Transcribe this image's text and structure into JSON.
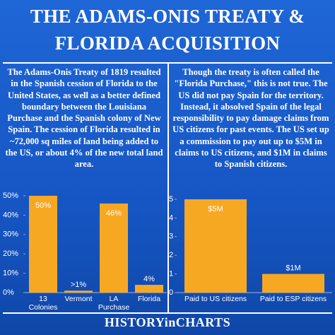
{
  "title": "THE ADAMS-ONIS TREATY & FLORIDA ACQUISITION",
  "left_text": "The Adams-Onis Treaty of 1819 resulted in the Spanish cession of Florida to the United States, as well as a better defined boundary between the Louisiana Purchase and the Spanish colony of New Spain. The cession of Florida resulted in ~72,000 sq miles of land being added to the US, or about 4% of the new total land area.",
  "right_text": "Though the treaty is often called the \"Florida Purchase,\" this is not true. The US did not pay Spain for the territory. Instead, it absolved Spain of the legal responsibility to pay damage claims from US citizens for past events. The US set up a commission to pay out up to $5M in claims to US citizens, and $1M in claims to Spanish citizens.",
  "footer": "HISTORYinCHARTS",
  "chart_data": [
    {
      "type": "bar",
      "categories": [
        "13 Colonies",
        "Vermont",
        "LA Purchase",
        "Florida"
      ],
      "values": [
        50,
        1,
        46,
        4
      ],
      "value_labels": [
        "50%",
        ">1%",
        "46%",
        "4%"
      ],
      "color": "#f7a823",
      "ylim": [
        0,
        50
      ],
      "yticks": [
        {
          "value": 0,
          "label": "0%"
        },
        {
          "value": 10,
          "label": "10%"
        },
        {
          "value": 20,
          "label": "20%"
        },
        {
          "value": 30,
          "label": "30%"
        },
        {
          "value": 40,
          "label": "40%"
        },
        {
          "value": 50,
          "label": "50%"
        }
      ],
      "grid": false
    },
    {
      "type": "bar",
      "categories": [
        "Paid to US citizens",
        "Paid to ESP citizens"
      ],
      "values": [
        5,
        1
      ],
      "value_labels": [
        "$5M",
        "$1M"
      ],
      "color": "#f7a823",
      "ylim": [
        0,
        5
      ],
      "yticks": [
        0,
        1,
        2,
        3,
        4,
        5
      ],
      "grid": false
    }
  ]
}
